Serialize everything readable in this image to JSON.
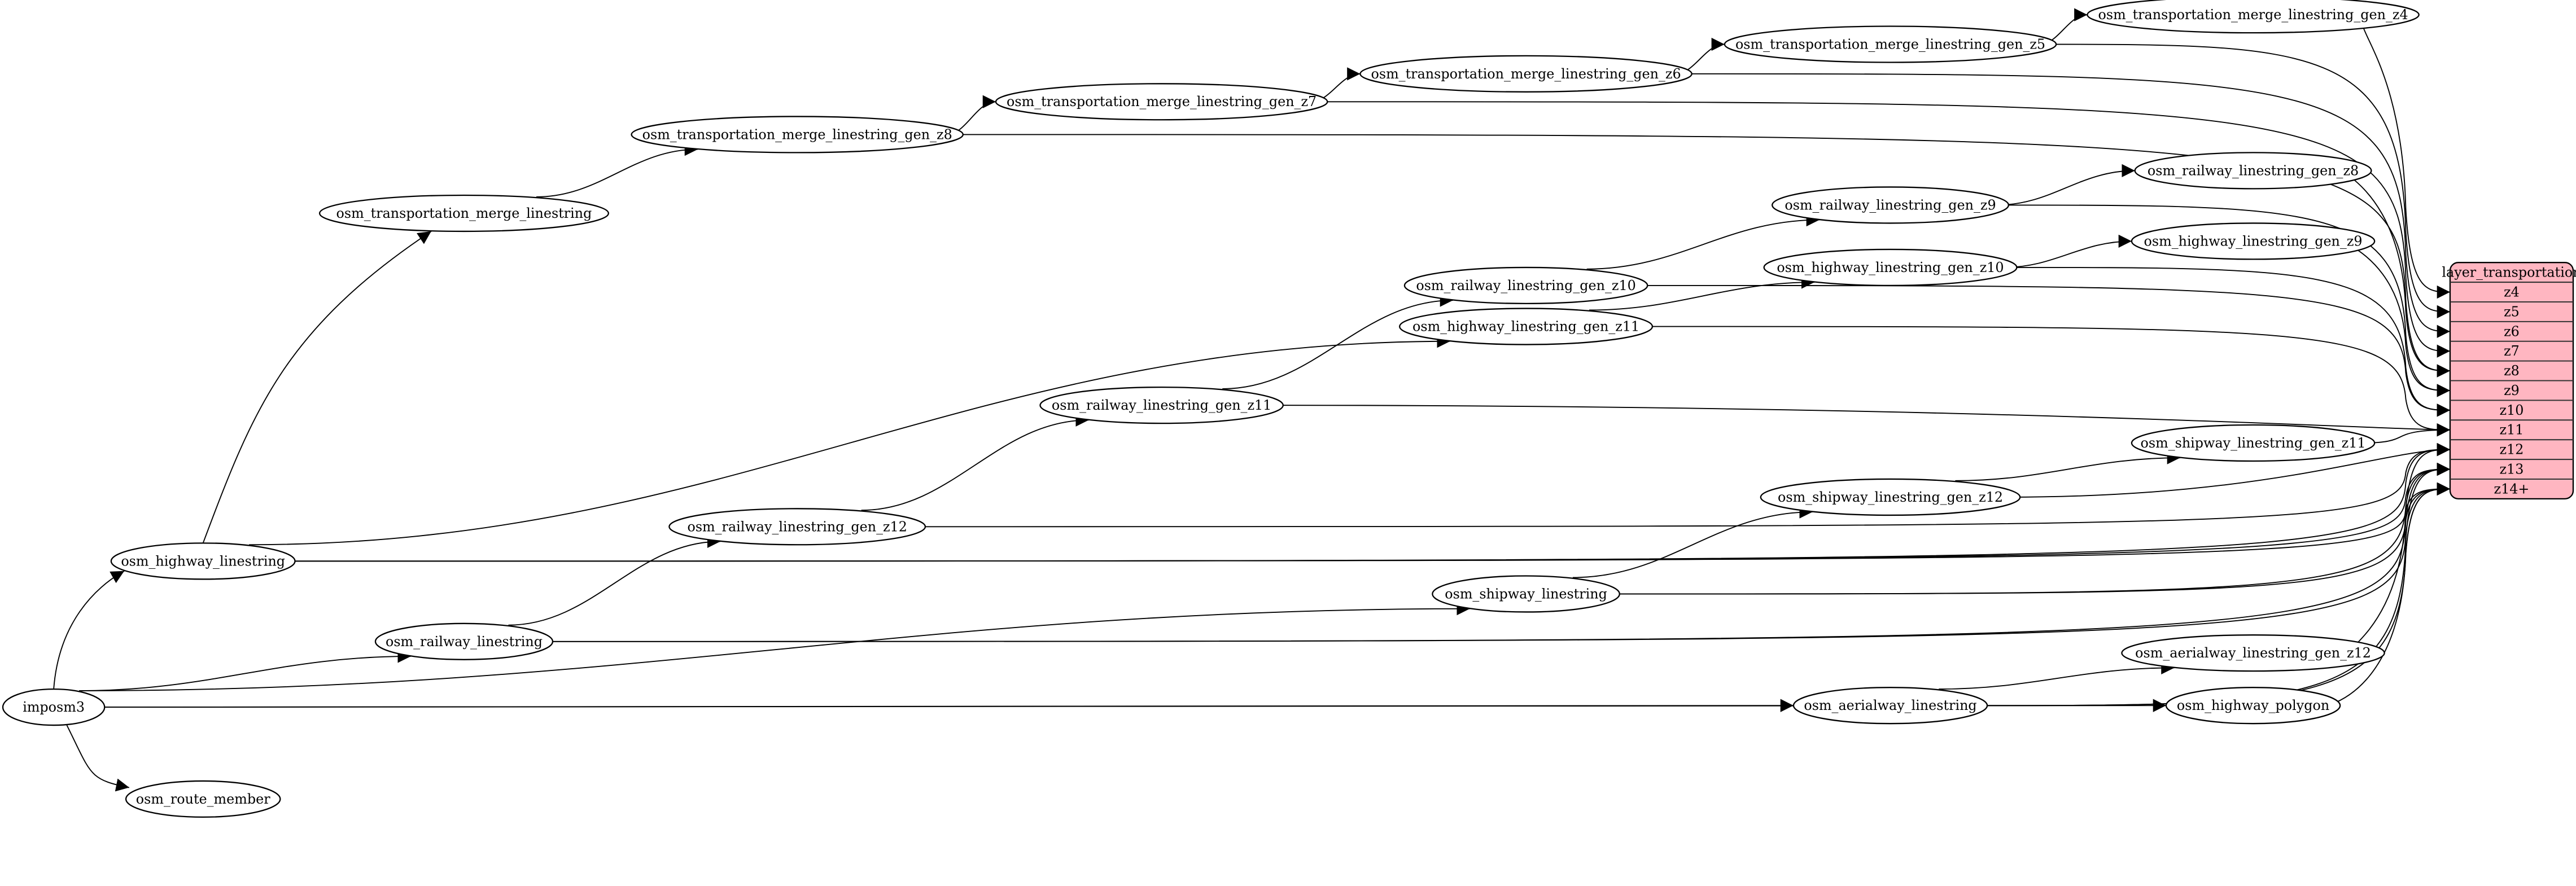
{
  "diagram": {
    "nodes": [
      {
        "id": "imposm3",
        "label": "imposm3"
      },
      {
        "id": "osm_route_member",
        "label": "osm_route_member"
      },
      {
        "id": "osm_highway_linestring",
        "label": "osm_highway_linestring"
      },
      {
        "id": "osm_railway_linestring",
        "label": "osm_railway_linestring"
      },
      {
        "id": "osm_transportation_merge_linestring",
        "label": "osm_transportation_merge_linestring"
      },
      {
        "id": "tm_z8",
        "label": "osm_transportation_merge_linestring_gen_z8"
      },
      {
        "id": "tm_z7",
        "label": "osm_transportation_merge_linestring_gen_z7"
      },
      {
        "id": "tm_z6",
        "label": "osm_transportation_merge_linestring_gen_z6"
      },
      {
        "id": "tm_z5",
        "label": "osm_transportation_merge_linestring_gen_z5"
      },
      {
        "id": "tm_z4",
        "label": "osm_transportation_merge_linestring_gen_z4"
      },
      {
        "id": "rl_z12",
        "label": "osm_railway_linestring_gen_z12"
      },
      {
        "id": "rl_z11",
        "label": "osm_railway_linestring_gen_z11"
      },
      {
        "id": "rl_z10",
        "label": "osm_railway_linestring_gen_z10"
      },
      {
        "id": "rl_z9",
        "label": "osm_railway_linestring_gen_z9"
      },
      {
        "id": "rl_z8",
        "label": "osm_railway_linestring_gen_z8"
      },
      {
        "id": "hl_z11",
        "label": "osm_highway_linestring_gen_z11"
      },
      {
        "id": "hl_z10",
        "label": "osm_highway_linestring_gen_z10"
      },
      {
        "id": "hl_z9",
        "label": "osm_highway_linestring_gen_z9"
      },
      {
        "id": "osm_shipway_linestring",
        "label": "osm_shipway_linestring"
      },
      {
        "id": "sl_z12",
        "label": "osm_shipway_linestring_gen_z12"
      },
      {
        "id": "sl_z11",
        "label": "osm_shipway_linestring_gen_z11"
      },
      {
        "id": "osm_aerialway_linestring",
        "label": "osm_aerialway_linestring"
      },
      {
        "id": "al_z12",
        "label": "osm_aerialway_linestring_gen_z12"
      },
      {
        "id": "osm_highway_polygon",
        "label": "osm_highway_polygon"
      }
    ],
    "layer": {
      "title": "layer_transportation",
      "fill": "#ffb6c1",
      "rows": [
        "z4",
        "z5",
        "z6",
        "z7",
        "z8",
        "z9",
        "z10",
        "z11",
        "z12",
        "z13",
        "z14+"
      ]
    },
    "edges": [
      [
        "imposm3",
        "osm_highway_linestring"
      ],
      [
        "imposm3",
        "osm_railway_linestring"
      ],
      [
        "imposm3",
        "osm_shipway_linestring"
      ],
      [
        "imposm3",
        "osm_aerialway_linestring"
      ],
      [
        "imposm3",
        "osm_highway_polygon"
      ],
      [
        "imposm3",
        "osm_route_member"
      ],
      [
        "osm_highway_linestring",
        "osm_transportation_merge_linestring"
      ],
      [
        "osm_highway_linestring",
        "hl_z11"
      ],
      [
        "osm_highway_linestring",
        "layer:z12"
      ],
      [
        "osm_highway_linestring",
        "layer:z13"
      ],
      [
        "osm_highway_linestring",
        "layer:z14+"
      ],
      [
        "osm_railway_linestring",
        "rl_z12"
      ],
      [
        "osm_railway_linestring",
        "layer:z13"
      ],
      [
        "osm_railway_linestring",
        "layer:z14+"
      ],
      [
        "osm_transportation_merge_linestring",
        "tm_z8"
      ],
      [
        "tm_z8",
        "tm_z7"
      ],
      [
        "tm_z7",
        "tm_z6"
      ],
      [
        "tm_z6",
        "tm_z5"
      ],
      [
        "tm_z5",
        "tm_z4"
      ],
      [
        "tm_z8",
        "layer:z8"
      ],
      [
        "tm_z7",
        "layer:z7"
      ],
      [
        "tm_z6",
        "layer:z6"
      ],
      [
        "tm_z5",
        "layer:z5"
      ],
      [
        "tm_z4",
        "layer:z4"
      ],
      [
        "rl_z12",
        "rl_z11"
      ],
      [
        "rl_z11",
        "rl_z10"
      ],
      [
        "rl_z10",
        "rl_z9"
      ],
      [
        "rl_z9",
        "rl_z8"
      ],
      [
        "rl_z12",
        "layer:z12"
      ],
      [
        "rl_z11",
        "layer:z11"
      ],
      [
        "rl_z10",
        "layer:z10"
      ],
      [
        "rl_z9",
        "layer:z9"
      ],
      [
        "rl_z8",
        "layer:z8"
      ],
      [
        "hl_z11",
        "hl_z10"
      ],
      [
        "hl_z10",
        "hl_z9"
      ],
      [
        "hl_z11",
        "layer:z11"
      ],
      [
        "hl_z10",
        "layer:z10"
      ],
      [
        "hl_z9",
        "layer:z9"
      ],
      [
        "osm_shipway_linestring",
        "sl_z12"
      ],
      [
        "osm_shipway_linestring",
        "layer:z13"
      ],
      [
        "osm_shipway_linestring",
        "layer:z14+"
      ],
      [
        "sl_z12",
        "sl_z11"
      ],
      [
        "sl_z12",
        "layer:z12"
      ],
      [
        "sl_z11",
        "layer:z11"
      ],
      [
        "osm_aerialway_linestring",
        "al_z12"
      ],
      [
        "osm_aerialway_linestring",
        "layer:z13"
      ],
      [
        "osm_aerialway_linestring",
        "layer:z14+"
      ],
      [
        "al_z12",
        "layer:z12"
      ],
      [
        "osm_highway_polygon",
        "layer:z14+"
      ]
    ]
  }
}
